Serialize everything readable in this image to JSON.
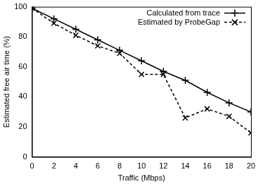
{
  "chart_data": {
    "type": "line",
    "x_label": "Traffic (Mbps)",
    "y_label": "Estimated free air time (%)",
    "x": [
      0,
      2,
      4,
      6,
      8,
      10,
      12,
      14,
      16,
      18,
      20
    ],
    "series": [
      {
        "name": "Calculated from trace",
        "color": "#000000",
        "marker": "cross",
        "line_style": "solid",
        "values": [
          99,
          92,
          85,
          78,
          71,
          64,
          57,
          51,
          43,
          36,
          30
        ]
      },
      {
        "name": "Estimated by ProbeGap",
        "color": "#000000",
        "marker": "crossRot",
        "line_style": "dashed",
        "values": [
          99,
          89,
          81,
          74,
          69,
          55,
          55,
          26,
          32,
          27,
          16
        ]
      }
    ],
    "xlim": [
      0,
      20
    ],
    "xticks": [
      0,
      2,
      4,
      6,
      8,
      10,
      12,
      14,
      16,
      18,
      20
    ],
    "ylim": [
      0,
      100
    ],
    "yticks": [
      0,
      20,
      40,
      60,
      80,
      100
    ],
    "grid": false,
    "legend": "upper right"
  }
}
